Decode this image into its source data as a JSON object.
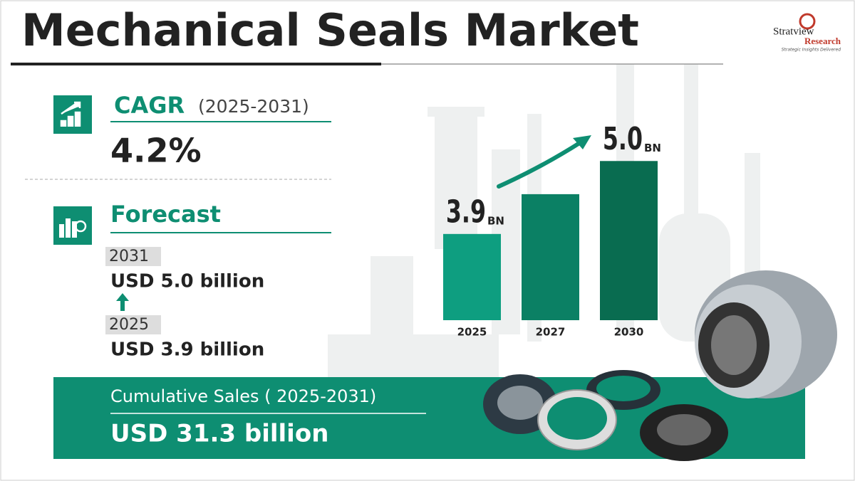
{
  "header": {
    "title": "Mechanical Seals Market"
  },
  "logo": {
    "name": "Stratview",
    "sub": "Research",
    "tagline": "Strategic Insights Delivered"
  },
  "cagr": {
    "label": "CAGR",
    "period": "(2025-2031)",
    "value": "4.2%"
  },
  "forecast": {
    "label": "Forecast",
    "end_year": "2031",
    "end_value": "USD 5.0 billion",
    "start_year": "2025",
    "start_value": "USD 3.9 billion"
  },
  "cumulative": {
    "label": "Cumulative Sales ( 2025-2031)",
    "value": "USD 31.3 billion"
  },
  "chart_data": {
    "type": "bar",
    "categories": [
      "2025",
      "2027",
      "2030"
    ],
    "values": [
      3.9,
      4.5,
      5.0
    ],
    "value_labels": [
      "3.9",
      null,
      "5.0"
    ],
    "unit": "BN",
    "colors": [
      "#0e9e80",
      "#0b8064",
      "#096c50"
    ],
    "ylim": [
      2.6,
      5.4
    ]
  }
}
